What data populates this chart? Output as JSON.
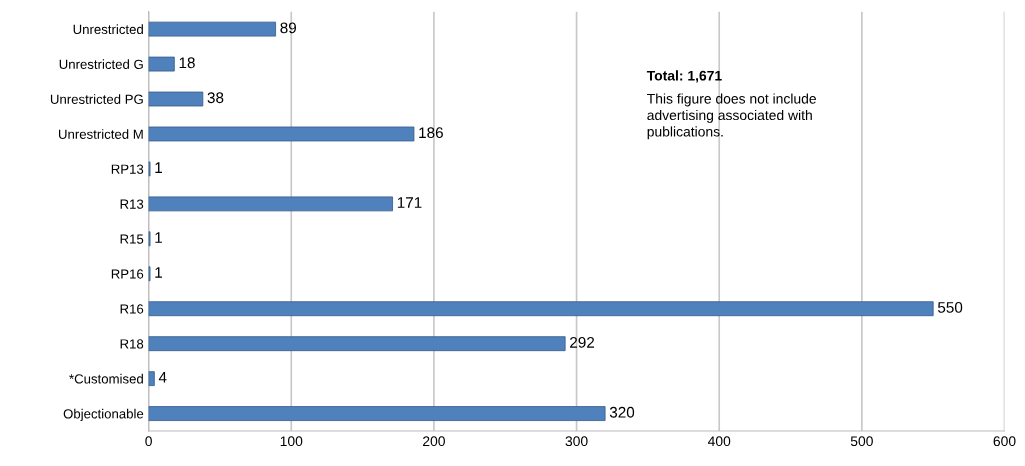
{
  "chart_data": {
    "type": "bar",
    "orientation": "horizontal",
    "categories": [
      "Unrestricted",
      "Unrestricted G",
      "Unrestricted PG",
      "Unrestricted M",
      "RP13",
      "R13",
      "R15",
      "RP16",
      "R16",
      "R18",
      "*Customised",
      "Objectionable"
    ],
    "values": [
      89,
      18,
      38,
      186,
      1,
      171,
      1,
      1,
      550,
      292,
      4,
      320
    ],
    "color": "#4f81bd",
    "data_labels": true,
    "xlim": [
      0,
      600
    ],
    "xticks": [
      0,
      100,
      200,
      300,
      400,
      500,
      600
    ],
    "grid": "x",
    "annotations": [
      "Total: 1,671",
      "This figure does not include advertising associated with publications."
    ]
  }
}
